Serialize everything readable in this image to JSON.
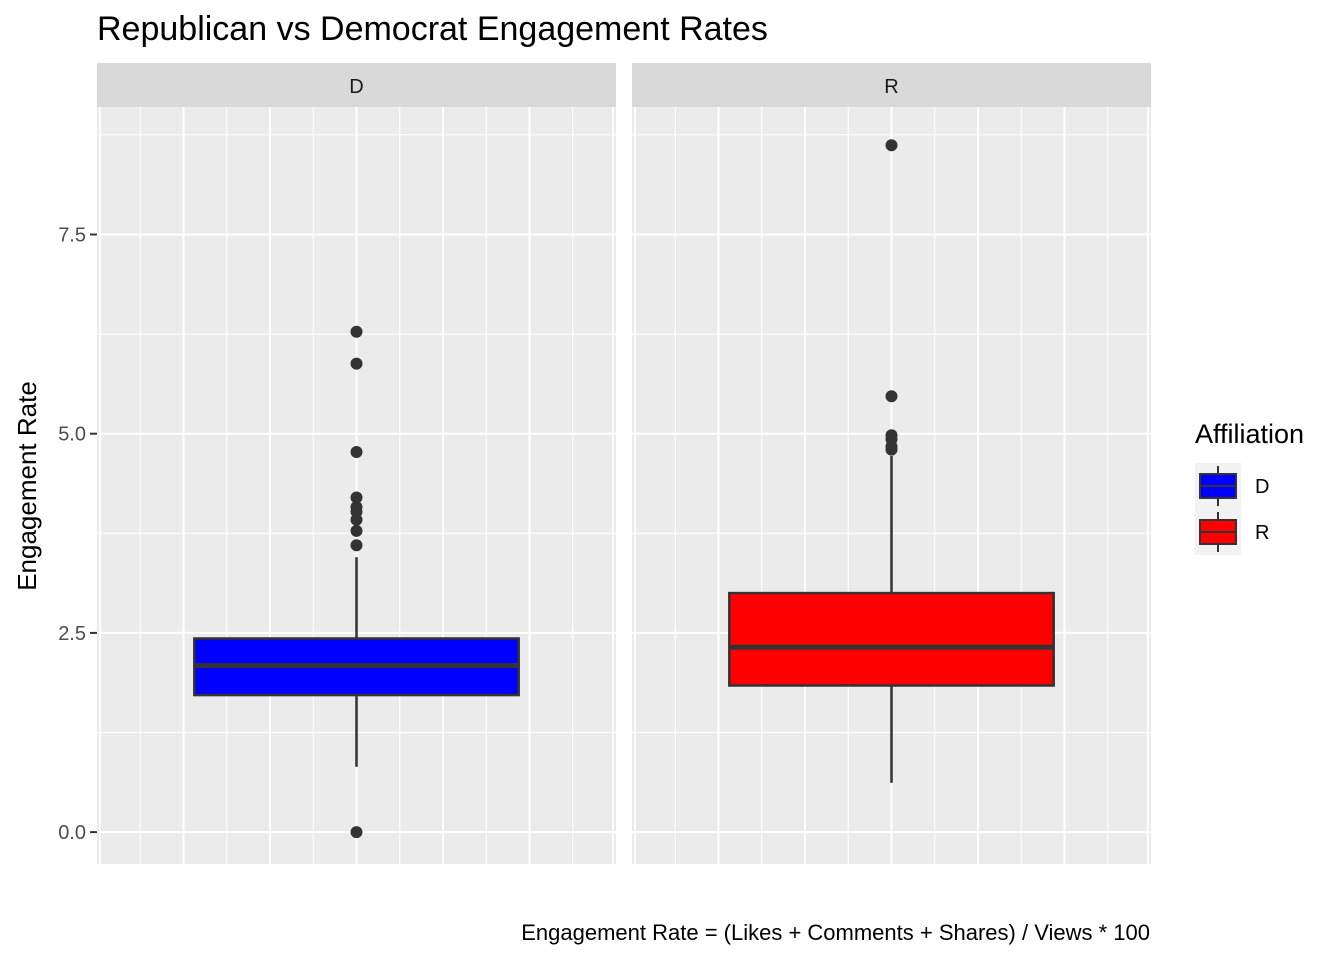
{
  "chart_data": {
    "type": "boxplot",
    "title": "Republican vs Democrat Engagement Rates",
    "ylabel": "Engagement Rate",
    "caption": "Engagement Rate = (Likes + Comments + Shares) / Views * 100",
    "ylim": [
      -0.4,
      9.1
    ],
    "yticks": [
      {
        "value": 0,
        "label": "0.0"
      },
      {
        "value": 2.5,
        "label": "2.5"
      },
      {
        "value": 5,
        "label": "5.0"
      },
      {
        "value": 7.5,
        "label": "7.5"
      }
    ],
    "grid": true,
    "legend": {
      "title": "Affiliation",
      "position": "right",
      "entries": [
        {
          "label": "D",
          "color": "#0000ff"
        },
        {
          "label": "R",
          "color": "#ff0000"
        }
      ]
    },
    "facets": [
      {
        "label": "D",
        "color": "#0000ff",
        "stats": {
          "lower_whisker": 0.82,
          "q1": 1.72,
          "median": 2.09,
          "q3": 2.43,
          "upper_whisker": 3.45
        },
        "outliers": [
          0.0,
          3.6,
          3.78,
          3.92,
          4.02,
          4.08,
          4.2,
          4.77,
          5.88,
          6.28
        ]
      },
      {
        "label": "R",
        "color": "#ff0000",
        "stats": {
          "lower_whisker": 0.62,
          "q1": 1.84,
          "median": 2.32,
          "q3": 3.0,
          "upper_whisker": 4.72
        },
        "outliers": [
          4.8,
          4.84,
          4.93,
          4.98,
          5.47,
          8.62
        ]
      }
    ]
  }
}
